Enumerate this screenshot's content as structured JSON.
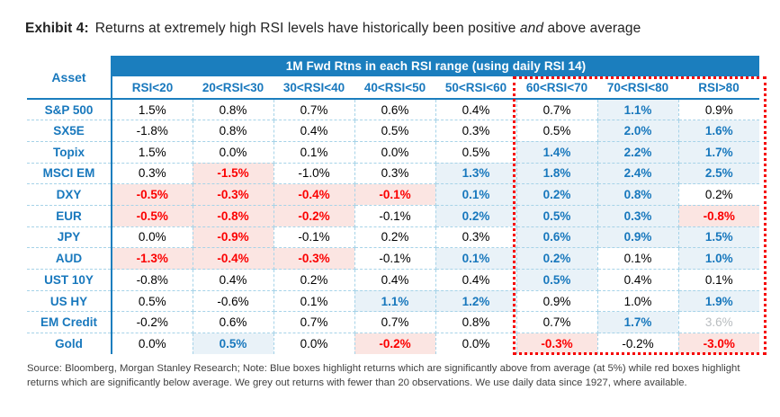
{
  "exhibit": {
    "label": "Exhibit 4:",
    "title_pre": "Returns at extremely high RSI levels have historically been positive ",
    "title_italic": "and",
    "title_post": " above average"
  },
  "chart_data": {
    "type": "table",
    "banner": "1M Fwd Rtns in each RSI range (using daily RSI 14)",
    "asset_column_header": "Asset",
    "columns": [
      "RSI<20",
      "20<RSI<30",
      "30<RSI<40",
      "40<RSI<50",
      "50<RSI<60",
      "60<RSI<70",
      "70<RSI<80",
      "RSI>80"
    ],
    "dotted_outline_columns": [
      "60<RSI<70",
      "70<RSI<80",
      "RSI>80"
    ],
    "rows": [
      {
        "asset": "S&P 500",
        "values": [
          "1.5%",
          "0.8%",
          "0.7%",
          "0.6%",
          "0.4%",
          "0.7%",
          "1.1%",
          "0.9%"
        ],
        "styles": [
          "plain",
          "plain",
          "plain",
          "plain",
          "plain",
          "plain",
          "blue",
          "plain"
        ]
      },
      {
        "asset": "SX5E",
        "values": [
          "-1.8%",
          "0.8%",
          "0.4%",
          "0.5%",
          "0.3%",
          "0.5%",
          "2.0%",
          "1.6%"
        ],
        "styles": [
          "plain",
          "plain",
          "plain",
          "plain",
          "plain",
          "plain",
          "blue",
          "blue"
        ]
      },
      {
        "asset": "Topix",
        "values": [
          "1.5%",
          "0.0%",
          "0.1%",
          "0.0%",
          "0.5%",
          "1.4%",
          "2.2%",
          "1.7%"
        ],
        "styles": [
          "plain",
          "plain",
          "plain",
          "plain",
          "plain",
          "blue",
          "blue",
          "blue"
        ]
      },
      {
        "asset": "MSCI EM",
        "values": [
          "0.3%",
          "-1.5%",
          "-1.0%",
          "0.3%",
          "1.3%",
          "1.8%",
          "2.4%",
          "2.5%"
        ],
        "styles": [
          "plain",
          "red",
          "plain",
          "plain",
          "blue",
          "blue",
          "blue",
          "blue"
        ]
      },
      {
        "asset": "DXY",
        "values": [
          "-0.5%",
          "-0.3%",
          "-0.4%",
          "-0.1%",
          "0.1%",
          "0.2%",
          "0.8%",
          "0.2%"
        ],
        "styles": [
          "red",
          "red",
          "red",
          "red",
          "blue",
          "blue",
          "blue",
          "plain"
        ]
      },
      {
        "asset": "EUR",
        "values": [
          "-0.5%",
          "-0.8%",
          "-0.2%",
          "-0.1%",
          "0.2%",
          "0.5%",
          "0.3%",
          "-0.8%"
        ],
        "styles": [
          "red",
          "red",
          "red",
          "plain",
          "blue",
          "blue",
          "blue",
          "red"
        ]
      },
      {
        "asset": "JPY",
        "values": [
          "0.0%",
          "-0.9%",
          "-0.1%",
          "0.2%",
          "0.3%",
          "0.6%",
          "0.9%",
          "1.5%"
        ],
        "styles": [
          "plain",
          "red",
          "plain",
          "plain",
          "plain",
          "blue",
          "blue",
          "blue"
        ]
      },
      {
        "asset": "AUD",
        "values": [
          "-1.3%",
          "-0.4%",
          "-0.3%",
          "-0.1%",
          "0.1%",
          "0.2%",
          "0.1%",
          "1.0%"
        ],
        "styles": [
          "red",
          "red",
          "red",
          "plain",
          "blue",
          "blue",
          "plain",
          "blue"
        ]
      },
      {
        "asset": "UST 10Y",
        "values": [
          "-0.8%",
          "0.4%",
          "0.2%",
          "0.4%",
          "0.4%",
          "0.5%",
          "0.4%",
          "0.1%"
        ],
        "styles": [
          "plain",
          "plain",
          "plain",
          "plain",
          "plain",
          "blue",
          "plain",
          "plain"
        ]
      },
      {
        "asset": "US HY",
        "values": [
          "0.5%",
          "-0.6%",
          "0.1%",
          "1.1%",
          "1.2%",
          "0.9%",
          "1.0%",
          "1.9%"
        ],
        "styles": [
          "plain",
          "plain",
          "plain",
          "blue",
          "blue",
          "plain",
          "plain",
          "blue"
        ]
      },
      {
        "asset": "EM Credit",
        "values": [
          "-0.2%",
          "0.6%",
          "0.7%",
          "0.7%",
          "0.8%",
          "0.7%",
          "1.7%",
          "3.6%"
        ],
        "styles": [
          "plain",
          "plain",
          "plain",
          "plain",
          "plain",
          "plain",
          "blue",
          "grey"
        ]
      },
      {
        "asset": "Gold",
        "values": [
          "0.0%",
          "0.5%",
          "0.0%",
          "-0.2%",
          "0.0%",
          "-0.3%",
          "-0.2%",
          "-3.0%"
        ],
        "styles": [
          "plain",
          "blue",
          "plain",
          "red",
          "plain",
          "red",
          "plain",
          "red"
        ]
      }
    ]
  },
  "source_note": "Source: Bloomberg, Morgan Stanley Research; Note: Blue boxes highlight returns which are significantly above from average (at 5%) while red boxes highlight returns which are significantly below average. We grey out returns with fewer than 20 observations. We use daily data since 1927, where available.",
  "colors": {
    "banner_blue": "#1b7ebe",
    "blue_text": "#1878bd",
    "blue_highlight_bg": "#e9f2f8",
    "red_text": "#fb0000",
    "red_highlight_bg": "#fbe5e2",
    "grey_text": "#b9bdc0",
    "dashed_grid": "#a6d3e8",
    "dotted_outline_red": "#f50000"
  }
}
